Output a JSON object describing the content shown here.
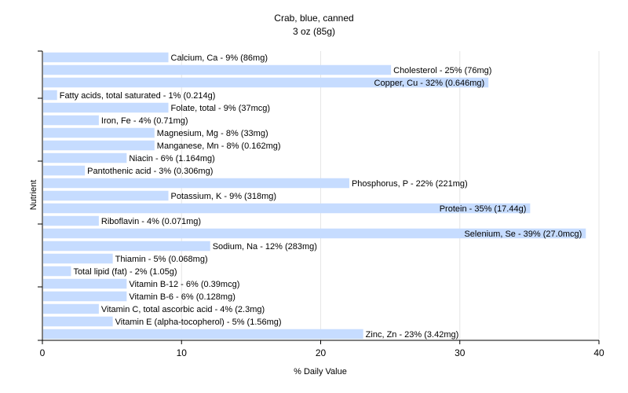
{
  "chart_data": {
    "type": "bar",
    "orientation": "horizontal",
    "title": "Crab, blue, canned",
    "subtitle": "3 oz (85g)",
    "xlabel": "% Daily Value",
    "ylabel": "Nutrient",
    "xlim": [
      0,
      40
    ],
    "xticks": [
      0,
      10,
      20,
      30,
      40
    ],
    "grid": true,
    "bar_color": "#c6dcff",
    "categories": [
      "Calcium, Ca",
      "Cholesterol",
      "Copper, Cu",
      "Fatty acids, total saturated",
      "Folate, total",
      "Iron, Fe",
      "Magnesium, Mg",
      "Manganese, Mn",
      "Niacin",
      "Pantothenic acid",
      "Phosphorus, P",
      "Potassium, K",
      "Protein",
      "Riboflavin",
      "Selenium, Se",
      "Sodium, Na",
      "Thiamin",
      "Total lipid (fat)",
      "Vitamin B-12",
      "Vitamin B-6",
      "Vitamin C, total ascorbic acid",
      "Vitamin E (alpha-tocopherol)",
      "Zinc, Zn"
    ],
    "values": [
      9,
      25,
      32,
      1,
      9,
      4,
      8,
      8,
      6,
      3,
      22,
      9,
      35,
      4,
      39,
      12,
      5,
      2,
      6,
      6,
      4,
      5,
      23
    ],
    "labels": [
      "Calcium, Ca - 9% (86mg)",
      "Cholesterol - 25% (76mg)",
      "Copper, Cu - 32% (0.646mg)",
      "Fatty acids, total saturated - 1% (0.214g)",
      "Folate, total - 9% (37mcg)",
      "Iron, Fe - 4% (0.71mg)",
      "Magnesium, Mg - 8% (33mg)",
      "Manganese, Mn - 8% (0.162mg)",
      "Niacin - 6% (1.164mg)",
      "Pantothenic acid - 3% (0.306mg)",
      "Phosphorus, P - 22% (221mg)",
      "Potassium, K - 9% (318mg)",
      "Protein - 35% (17.44g)",
      "Riboflavin - 4% (0.071mg)",
      "Selenium, Se - 39% (27.0mcg)",
      "Sodium, Na - 12% (283mg)",
      "Thiamin - 5% (0.068mg)",
      "Total lipid (fat) - 2% (1.05g)",
      "Vitamin B-12 - 6% (0.39mcg)",
      "Vitamin B-6 - 6% (0.128mg)",
      "Vitamin C, total ascorbic acid - 4% (2.3mg)",
      "Vitamin E (alpha-tocopherol) - 5% (1.56mg)",
      "Zinc, Zn - 23% (3.42mg)"
    ]
  }
}
